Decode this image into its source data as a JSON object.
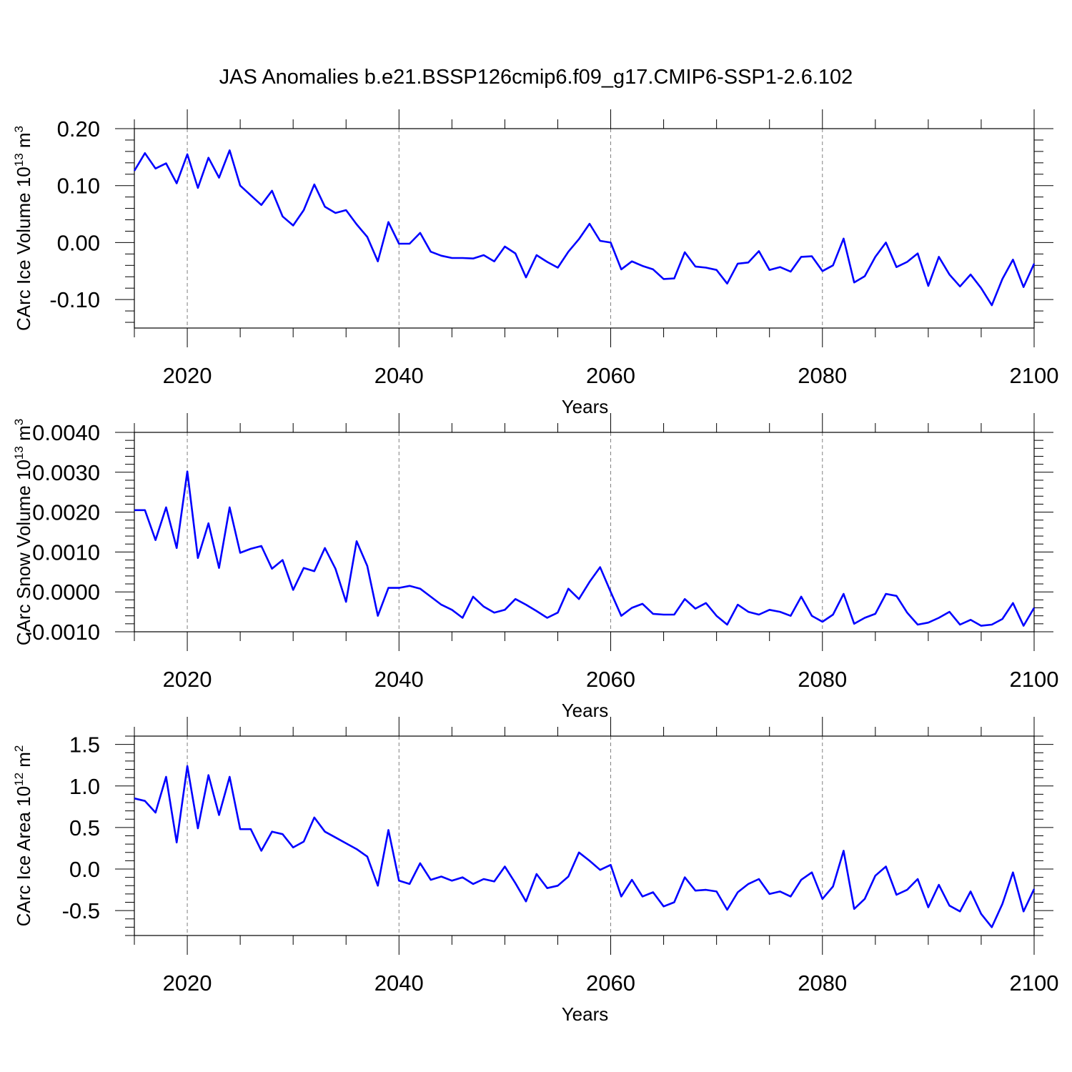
{
  "title": "JAS Anomalies b.e21.BSSP126cmip6.f09_g17.CMIP6-SSP1-2.6.102",
  "colors": {
    "line": "#0000ff",
    "axis": "#000000",
    "grid": "#808080"
  },
  "chart_data": [
    {
      "type": "line",
      "ylabel_text": "CArc Ice Volume 10",
      "ylabel_exp": "13",
      "ylabel_unit": " m",
      "ylabel_unit_exp": "3",
      "xlabel": "Years",
      "xlim": [
        2015,
        2100
      ],
      "ylim": [
        -0.15,
        0.2
      ],
      "yticks": [
        -0.1,
        0.0,
        0.1,
        0.2
      ],
      "ytick_labels": [
        "-0.10",
        "0.00",
        "0.10",
        "0.20"
      ],
      "xticks": [
        2020,
        2040,
        2060,
        2080,
        2100
      ],
      "xtick_labels": [
        "2020",
        "2040",
        "2060",
        "2080",
        "2100"
      ],
      "grid_x": [
        2020,
        2040,
        2060,
        2080
      ],
      "start_year": 2015,
      "values": [
        0.126,
        0.157,
        0.13,
        0.139,
        0.104,
        0.155,
        0.096,
        0.149,
        0.114,
        0.162,
        0.1,
        0.083,
        0.066,
        0.091,
        0.046,
        0.03,
        0.057,
        0.102,
        0.063,
        0.052,
        0.057,
        0.032,
        0.01,
        -0.033,
        0.036,
        -0.002,
        -0.002,
        0.017,
        -0.016,
        -0.023,
        -0.027,
        -0.027,
        -0.028,
        -0.022,
        -0.033,
        -0.007,
        -0.019,
        -0.061,
        -0.022,
        -0.034,
        -0.044,
        -0.016,
        0.006,
        0.033,
        0.003,
        0.0,
        -0.047,
        -0.033,
        -0.041,
        -0.047,
        -0.064,
        -0.063,
        -0.017,
        -0.042,
        -0.044,
        -0.048,
        -0.072,
        -0.037,
        -0.035,
        -0.015,
        -0.048,
        -0.043,
        -0.051,
        -0.025,
        -0.024,
        -0.05,
        -0.04,
        0.007,
        -0.07,
        -0.059,
        -0.025,
        0.0,
        -0.043,
        -0.034,
        -0.019,
        -0.076,
        -0.025,
        -0.056,
        -0.077,
        -0.056,
        -0.08,
        -0.11,
        -0.064,
        -0.03,
        -0.078,
        -0.037
      ]
    },
    {
      "type": "line",
      "ylabel_text": "CArc Snow Volume 10",
      "ylabel_exp": "13",
      "ylabel_unit": " m",
      "ylabel_unit_exp": "3",
      "xlabel": "Years",
      "xlim": [
        2015,
        2100
      ],
      "ylim": [
        -0.001,
        0.004
      ],
      "yticks": [
        -0.001,
        0.0,
        0.001,
        0.002,
        0.003,
        0.004
      ],
      "ytick_labels": [
        "-0.0010",
        "0.0000",
        "0.0010",
        "0.0020",
        "0.0030",
        "0.0040"
      ],
      "xticks": [
        2020,
        2040,
        2060,
        2080,
        2100
      ],
      "xtick_labels": [
        "2020",
        "2040",
        "2060",
        "2080",
        "2100"
      ],
      "grid_x": [
        2020,
        2040,
        2060,
        2080
      ],
      "start_year": 2015,
      "values": [
        0.00205,
        0.00205,
        0.0013,
        0.00212,
        0.0011,
        0.00302,
        0.00085,
        0.00172,
        0.0006,
        0.00212,
        0.00098,
        0.00108,
        0.00115,
        0.00058,
        0.0008,
        5e-05,
        0.0006,
        0.00052,
        0.0011,
        0.00058,
        -0.00025,
        0.00127,
        0.00065,
        -0.0006,
        0.0001,
        0.0001,
        0.00015,
        8e-05,
        -0.00012,
        -0.00032,
        -0.00045,
        -0.00065,
        -0.00012,
        -0.00037,
        -0.00052,
        -0.00045,
        -0.00018,
        -0.00032,
        -0.00048,
        -0.00065,
        -0.00052,
        8e-05,
        -0.00018,
        0.00025,
        0.00062,
        0.0,
        -0.0006,
        -0.0004,
        -0.0003,
        -0.00055,
        -0.00057,
        -0.00057,
        -0.00018,
        -0.00042,
        -0.00028,
        -0.0006,
        -0.00082,
        -0.00032,
        -0.0005,
        -0.00057,
        -0.00045,
        -0.0005,
        -0.0006,
        -0.00012,
        -0.0006,
        -0.00075,
        -0.00057,
        -5e-05,
        -0.0008,
        -0.00065,
        -0.00055,
        -5e-05,
        -0.0001,
        -0.00052,
        -0.00082,
        -0.00077,
        -0.00065,
        -0.0005,
        -0.00082,
        -0.0007,
        -0.00085,
        -0.00082,
        -0.00068,
        -0.00028,
        -0.00085,
        -0.0004
      ]
    },
    {
      "type": "line",
      "ylabel_text": "CArc Ice Area 10",
      "ylabel_exp": "12",
      "ylabel_unit": " m",
      "ylabel_unit_exp": "2",
      "xlabel": "Years",
      "xlim": [
        2015,
        2100
      ],
      "ylim": [
        -0.8,
        1.6
      ],
      "yticks": [
        -0.5,
        0.0,
        0.5,
        1.0,
        1.5
      ],
      "ytick_labels": [
        "-0.5",
        "0.0",
        "0.5",
        "1.0",
        "1.5"
      ],
      "xticks": [
        2020,
        2040,
        2060,
        2080,
        2100
      ],
      "xtick_labels": [
        "2020",
        "2040",
        "2060",
        "2080",
        "2100"
      ],
      "grid_x": [
        2020,
        2040,
        2060,
        2080
      ],
      "start_year": 2015,
      "values": [
        0.85,
        0.82,
        0.68,
        1.11,
        0.32,
        1.24,
        0.49,
        1.13,
        0.65,
        1.11,
        0.48,
        0.48,
        0.22,
        0.45,
        0.42,
        0.26,
        0.33,
        0.62,
        0.45,
        0.38,
        0.31,
        0.24,
        0.15,
        -0.2,
        0.47,
        -0.14,
        -0.18,
        0.07,
        -0.13,
        -0.09,
        -0.14,
        -0.1,
        -0.18,
        -0.12,
        -0.15,
        0.03,
        -0.17,
        -0.39,
        -0.06,
        -0.23,
        -0.2,
        -0.09,
        0.2,
        0.1,
        -0.01,
        0.05,
        -0.33,
        -0.13,
        -0.33,
        -0.28,
        -0.45,
        -0.4,
        -0.1,
        -0.26,
        -0.25,
        -0.27,
        -0.49,
        -0.28,
        -0.18,
        -0.12,
        -0.3,
        -0.27,
        -0.33,
        -0.13,
        -0.04,
        -0.36,
        -0.21,
        0.22,
        -0.48,
        -0.36,
        -0.08,
        0.03,
        -0.31,
        -0.25,
        -0.12,
        -0.46,
        -0.19,
        -0.44,
        -0.51,
        -0.27,
        -0.54,
        -0.7,
        -0.42,
        -0.04,
        -0.51,
        -0.24
      ]
    }
  ]
}
